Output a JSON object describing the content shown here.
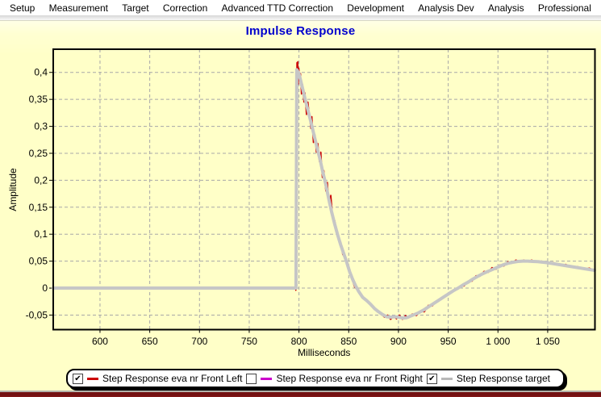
{
  "menu": {
    "items": [
      "Setup",
      "Measurement",
      "Target",
      "Correction",
      "Advanced TTD Correction",
      "Development",
      "Analysis Dev",
      "Analysis",
      "Professional"
    ]
  },
  "legend": {
    "items": [
      {
        "label": "Step Response eva nr Front Left",
        "color": "#CC0000",
        "checked": true
      },
      {
        "label": "Step Response eva nr Front Right",
        "color": "#CC00CC",
        "checked": false
      },
      {
        "label": "Step Response target",
        "color": "#B8B8B8",
        "checked": true
      }
    ]
  },
  "chart_data": {
    "type": "line",
    "title": "Impulse Response",
    "title_color": "#0000CD",
    "xlabel": "Milliseconds",
    "ylabel": "Amplitude",
    "xlim": [
      553,
      1097.5
    ],
    "ylim": [
      -0.077,
      0.443
    ],
    "grid": true,
    "grid_color": "#A8A8A8",
    "x_ticks": [
      600,
      650,
      700,
      750,
      800,
      850,
      900,
      950,
      1000,
      1050
    ],
    "x_tick_labels": [
      "600",
      "650",
      "700",
      "750",
      "800",
      "850",
      "900",
      "950",
      "1 000",
      "1 050"
    ],
    "y_ticks": [
      0.4,
      0.35,
      0.3,
      0.25,
      0.2,
      0.15,
      0.1,
      0.05,
      0,
      -0.05
    ],
    "y_tick_labels": [
      "0,4",
      "0,35",
      "0,3",
      "0,25",
      "0,2",
      "0,15",
      "0,1",
      "0,05",
      "0",
      "-0,05"
    ],
    "legend_position": "bottom",
    "series": [
      {
        "name": "Step Response eva nr Front Left",
        "color": "#CC0000",
        "width": 1.6,
        "visible": true,
        "points": [
          [
            796.8,
            -0.004
          ],
          [
            797.3,
            0.1
          ],
          [
            797.5,
            0.2
          ],
          [
            797.8,
            0.38
          ],
          [
            798,
            0.418
          ],
          [
            798.4,
            0.392
          ],
          [
            798.8,
            0.42
          ],
          [
            799.3,
            0.378
          ],
          [
            799.8,
            0.408
          ],
          [
            800.5,
            0.39
          ],
          [
            801.5,
            0.398
          ],
          [
            802.5,
            0.36
          ],
          [
            803.5,
            0.378
          ],
          [
            805,
            0.345
          ],
          [
            806,
            0.362
          ],
          [
            807.5,
            0.322
          ],
          [
            809,
            0.345
          ],
          [
            810.5,
            0.318
          ],
          [
            812,
            0.296
          ],
          [
            813,
            0.318
          ],
          [
            814.5,
            0.27
          ],
          [
            816,
            0.285
          ],
          [
            817.5,
            0.252
          ],
          [
            819,
            0.268
          ],
          [
            820.5,
            0.235
          ],
          [
            822,
            0.252
          ],
          [
            823.5,
            0.205
          ],
          [
            825,
            0.218
          ],
          [
            827,
            0.18
          ],
          [
            828.5,
            0.196
          ],
          [
            830,
            0.158
          ],
          [
            832,
            0.172
          ],
          [
            834,
            0.128
          ],
          [
            836,
            0.125
          ],
          [
            838,
            0.105
          ],
          [
            840,
            0.09
          ],
          [
            842,
            0.085
          ],
          [
            844,
            0.062
          ],
          [
            846,
            0.06
          ],
          [
            848,
            0.043
          ],
          [
            850,
            0.037
          ],
          [
            853,
            0.018
          ],
          [
            856,
            0.002
          ],
          [
            859,
            -0.004
          ],
          [
            862,
            -0.013
          ],
          [
            866,
            -0.019
          ],
          [
            870,
            -0.028
          ],
          [
            874,
            -0.034
          ],
          [
            878,
            -0.042
          ],
          [
            882,
            -0.047
          ],
          [
            886,
            -0.054
          ],
          [
            889,
            -0.05
          ],
          [
            892,
            -0.058
          ],
          [
            895,
            -0.052
          ],
          [
            898,
            -0.057
          ],
          [
            901,
            -0.05
          ],
          [
            904,
            -0.058
          ],
          [
            907,
            -0.051
          ],
          [
            910,
            -0.055
          ],
          [
            914,
            -0.048
          ],
          [
            918,
            -0.051
          ],
          [
            922,
            -0.043
          ],
          [
            926,
            -0.044
          ],
          [
            930,
            -0.032
          ],
          [
            934,
            -0.033
          ],
          [
            938,
            -0.024
          ],
          [
            942,
            -0.022
          ],
          [
            946,
            -0.015
          ],
          [
            950,
            -0.012
          ],
          [
            954,
            -0.006
          ],
          [
            958,
            -0.003
          ],
          [
            962,
            0.004
          ],
          [
            966,
            0.004
          ],
          [
            970,
            0.013
          ],
          [
            974,
            0.013
          ],
          [
            978,
            0.023
          ],
          [
            982,
            0.022
          ],
          [
            986,
            0.031
          ],
          [
            990,
            0.029
          ],
          [
            994,
            0.038
          ],
          [
            998,
            0.035
          ],
          [
            1002,
            0.043
          ],
          [
            1006,
            0.041
          ],
          [
            1010,
            0.049
          ],
          [
            1014,
            0.046
          ],
          [
            1018,
            0.052
          ],
          [
            1022,
            0.049
          ],
          [
            1026,
            0.052
          ],
          [
            1030,
            0.049
          ],
          [
            1034,
            0.052
          ],
          [
            1038,
            0.048
          ],
          [
            1044,
            0.05
          ],
          [
            1050,
            0.046
          ],
          [
            1056,
            0.047
          ],
          [
            1062,
            0.042
          ],
          [
            1068,
            0.044
          ],
          [
            1074,
            0.039
          ],
          [
            1080,
            0.04
          ],
          [
            1086,
            0.035
          ],
          [
            1092,
            0.037
          ],
          [
            1097,
            0.032
          ]
        ]
      },
      {
        "name": "Step Response eva nr Front Right",
        "color": "#CC00CC",
        "width": 1.6,
        "visible": false,
        "points": []
      },
      {
        "name": "Step Response target",
        "color": "#C6C6C6",
        "width": 4,
        "visible": true,
        "points": [
          [
            553,
            0
          ],
          [
            797,
            0
          ],
          [
            797.8,
            0.405
          ],
          [
            800,
            0.398
          ],
          [
            803,
            0.375
          ],
          [
            806,
            0.352
          ],
          [
            809,
            0.33
          ],
          [
            812,
            0.308
          ],
          [
            815,
            0.285
          ],
          [
            818,
            0.262
          ],
          [
            821,
            0.24
          ],
          [
            824,
            0.215
          ],
          [
            827,
            0.192
          ],
          [
            830,
            0.165
          ],
          [
            833,
            0.14
          ],
          [
            836,
            0.118
          ],
          [
            839,
            0.098
          ],
          [
            842,
            0.08
          ],
          [
            845,
            0.064
          ],
          [
            848,
            0.048
          ],
          [
            851,
            0.03
          ],
          [
            854,
            0.016
          ],
          [
            857,
            0.004
          ],
          [
            860,
            -0.006
          ],
          [
            864,
            -0.017
          ],
          [
            868,
            -0.023
          ],
          [
            872,
            -0.03
          ],
          [
            876,
            -0.038
          ],
          [
            880,
            -0.044
          ],
          [
            884,
            -0.049
          ],
          [
            888,
            -0.053
          ],
          [
            892,
            -0.054
          ],
          [
            896,
            -0.053
          ],
          [
            900,
            -0.054
          ],
          [
            904,
            -0.0555
          ],
          [
            908,
            -0.055
          ],
          [
            912,
            -0.052
          ],
          [
            916,
            -0.049
          ],
          [
            920,
            -0.046
          ],
          [
            925,
            -0.041
          ],
          [
            930,
            -0.035
          ],
          [
            935,
            -0.029
          ],
          [
            940,
            -0.023
          ],
          [
            945,
            -0.017
          ],
          [
            950,
            -0.011
          ],
          [
            955,
            -0.005
          ],
          [
            960,
            0
          ],
          [
            965,
            0.006
          ],
          [
            970,
            0.011
          ],
          [
            975,
            0.017
          ],
          [
            980,
            0.022
          ],
          [
            985,
            0.027
          ],
          [
            990,
            0.031
          ],
          [
            995,
            0.035
          ],
          [
            1000,
            0.039
          ],
          [
            1005,
            0.043
          ],
          [
            1010,
            0.046
          ],
          [
            1015,
            0.048
          ],
          [
            1020,
            0.0495
          ],
          [
            1025,
            0.05
          ],
          [
            1030,
            0.05
          ],
          [
            1035,
            0.0495
          ],
          [
            1040,
            0.049
          ],
          [
            1050,
            0.047
          ],
          [
            1060,
            0.044
          ],
          [
            1070,
            0.041
          ],
          [
            1080,
            0.038
          ],
          [
            1090,
            0.035
          ],
          [
            1097,
            0.033
          ]
        ]
      }
    ]
  }
}
